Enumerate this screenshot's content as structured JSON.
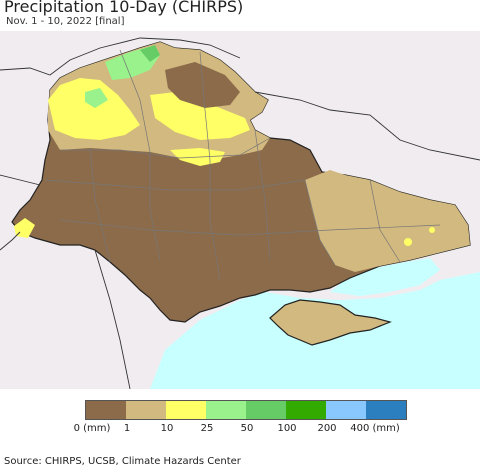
{
  "title": "Precipitation 10-Day (CHIRPS)",
  "subtitle": "Nov. 1 - 10, 2022 [final]",
  "legend": {
    "colors": [
      "#8B6B4A",
      "#D2B97F",
      "#FFFF66",
      "#99F28C",
      "#66CC66",
      "#33AA00",
      "#88C8FF",
      "#2B7FBF"
    ],
    "labels": [
      "0 (mm)",
      "1",
      "10",
      "25",
      "50",
      "100",
      "200",
      "400 (mm)"
    ]
  },
  "colors": {
    "sea": "#C8FFFF",
    "neighbor_land": "#F0ECEF",
    "border": "#333333",
    "oblast_line": "#777777"
  },
  "source": "Source: CHIRPS, UCSB, Climate Hazards Center"
}
